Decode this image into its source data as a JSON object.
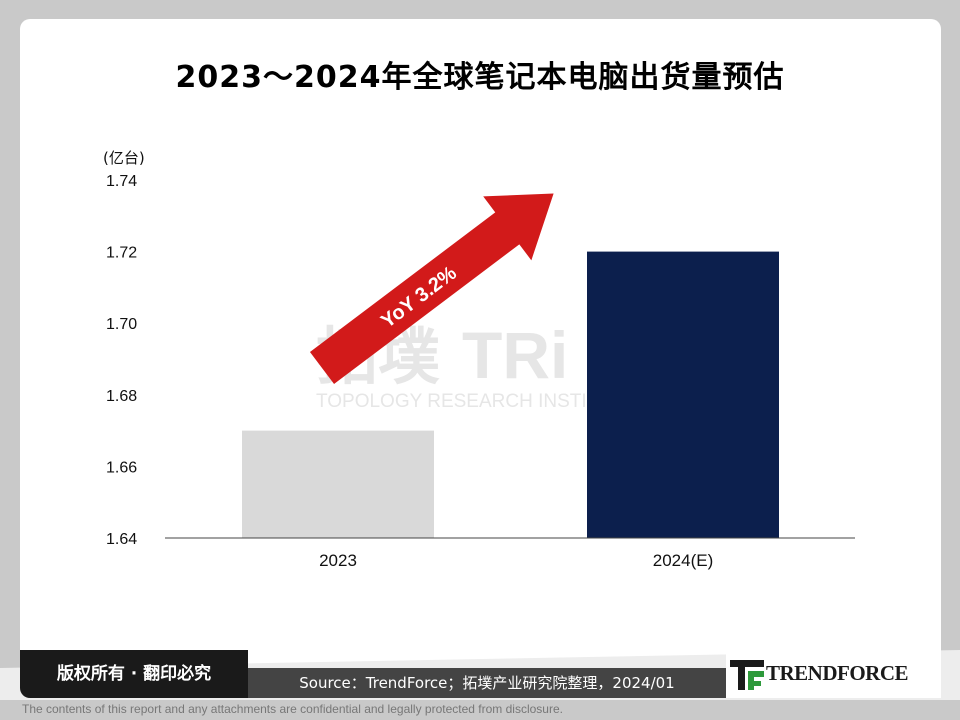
{
  "page": {
    "title": "2023～2024年全球笔记本电脑出货量预估",
    "rights_notice": "版权所有 · 翻印必究",
    "source": "Source：TrendForce；拓墣产业研究院整理，2024/01",
    "brand": "TRENDFORCE",
    "disclaimer": "The contents of this report and any attachments are confidential and legally protected from disclosure.",
    "watermark": {
      "cn": "拓墣",
      "en": "TOPOLOGY RESEARCH INSTITUTE",
      "logo": "TRi"
    }
  },
  "chart_data": {
    "type": "bar",
    "title": "2023～2024年全球笔记本电脑出货量预估",
    "unit_label": "(亿台)",
    "categories": [
      "2023",
      "2024(E)"
    ],
    "values": [
      1.67,
      1.72
    ],
    "bar_colors": [
      "#d9d9d9",
      "#0c1f4d"
    ],
    "ylim": [
      1.64,
      1.74
    ],
    "yticks": [
      "1.74",
      "1.72",
      "1.70",
      "1.68",
      "1.66",
      "1.64"
    ],
    "annotation": "YoY 3.2%",
    "arrow_color": "#d21a1a",
    "grid": false
  }
}
